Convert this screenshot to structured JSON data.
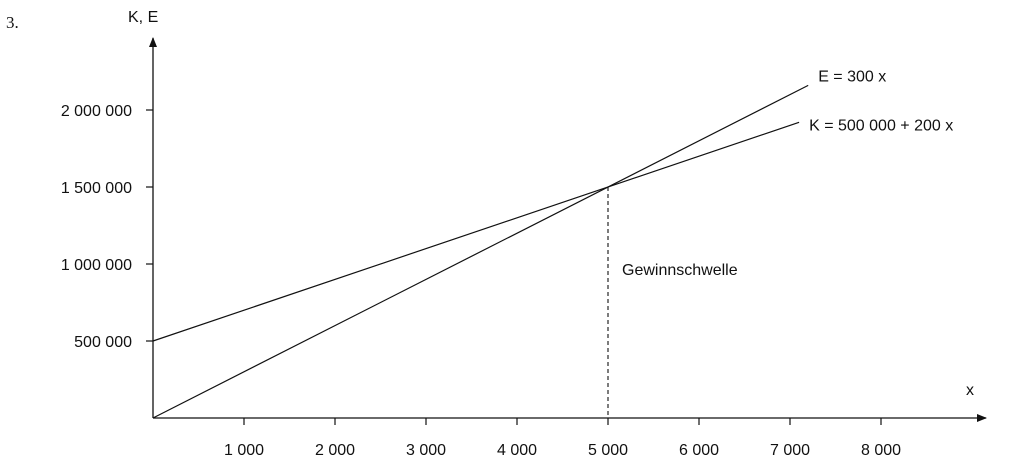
{
  "figure_number": "3.",
  "chart_data": {
    "type": "line",
    "ylabel": "K, E",
    "xlabel": "x",
    "x_ticks": [
      1000,
      2000,
      3000,
      4000,
      5000,
      6000,
      7000,
      8000
    ],
    "x_tick_labels": [
      "1 000",
      "2 000",
      "3 000",
      "4 000",
      "5 000",
      "6 000",
      "7 000",
      "8 000"
    ],
    "y_ticks": [
      500000,
      1000000,
      1500000,
      2000000
    ],
    "y_tick_labels": [
      "500 000",
      "1 000 000",
      "1 500 000",
      "2 000 000"
    ],
    "series": [
      {
        "name": "E = 300 x",
        "x": [
          0,
          7200
        ],
        "y": [
          0,
          2160000
        ]
      },
      {
        "name": "K = 500 000 + 200 x",
        "x": [
          0,
          7100
        ],
        "y": [
          500000,
          1920000
        ]
      }
    ],
    "annotations": [
      {
        "text": "Gewinnschwelle",
        "x": 5000,
        "y": 1500000
      }
    ],
    "breakeven": {
      "x": 5000,
      "y": 1500000
    },
    "grid": false,
    "legend": "none"
  }
}
